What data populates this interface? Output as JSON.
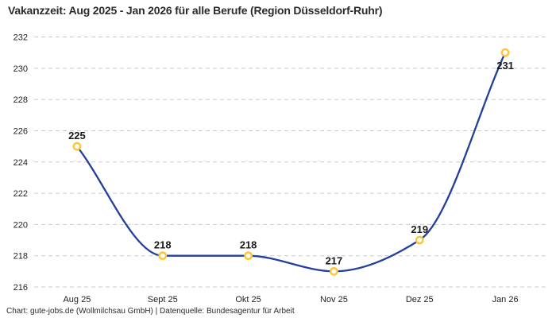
{
  "chart_data": {
    "type": "line",
    "title": "Vakanzzeit: Aug 2025 - Jan 2026 für alle Berufe (Region Düsseldorf-Ruhr)",
    "source_note": "Chart: gute-jobs.de (Wollmilchsau GmbH) | Datenquelle: Bundesagentur für Arbeit",
    "categories": [
      "Aug 25",
      "Sept 25",
      "Okt 25",
      "Nov 25",
      "Dez 25",
      "Jan 26"
    ],
    "values": [
      225,
      218,
      218,
      217,
      219,
      231
    ],
    "data_labels": [
      225,
      218,
      218,
      217,
      219,
      231
    ],
    "xlabel": "",
    "ylabel": "",
    "ylim": [
      216,
      232
    ],
    "yticks": [
      216,
      218,
      220,
      222,
      224,
      226,
      228,
      230,
      232
    ],
    "grid": "horizontal-dashed",
    "legend": "none",
    "smooth": true,
    "marker_style": "open-circle",
    "colors": {
      "line": "#233f9c",
      "marker_stroke": "#ffc533",
      "marker_fill": "#ffffff",
      "grid": "#c9c9c9",
      "tick_text": "#222222",
      "value_label_text": "#1a1a1a",
      "title_text": "#2b2b2b",
      "background": "#ffffff"
    }
  }
}
